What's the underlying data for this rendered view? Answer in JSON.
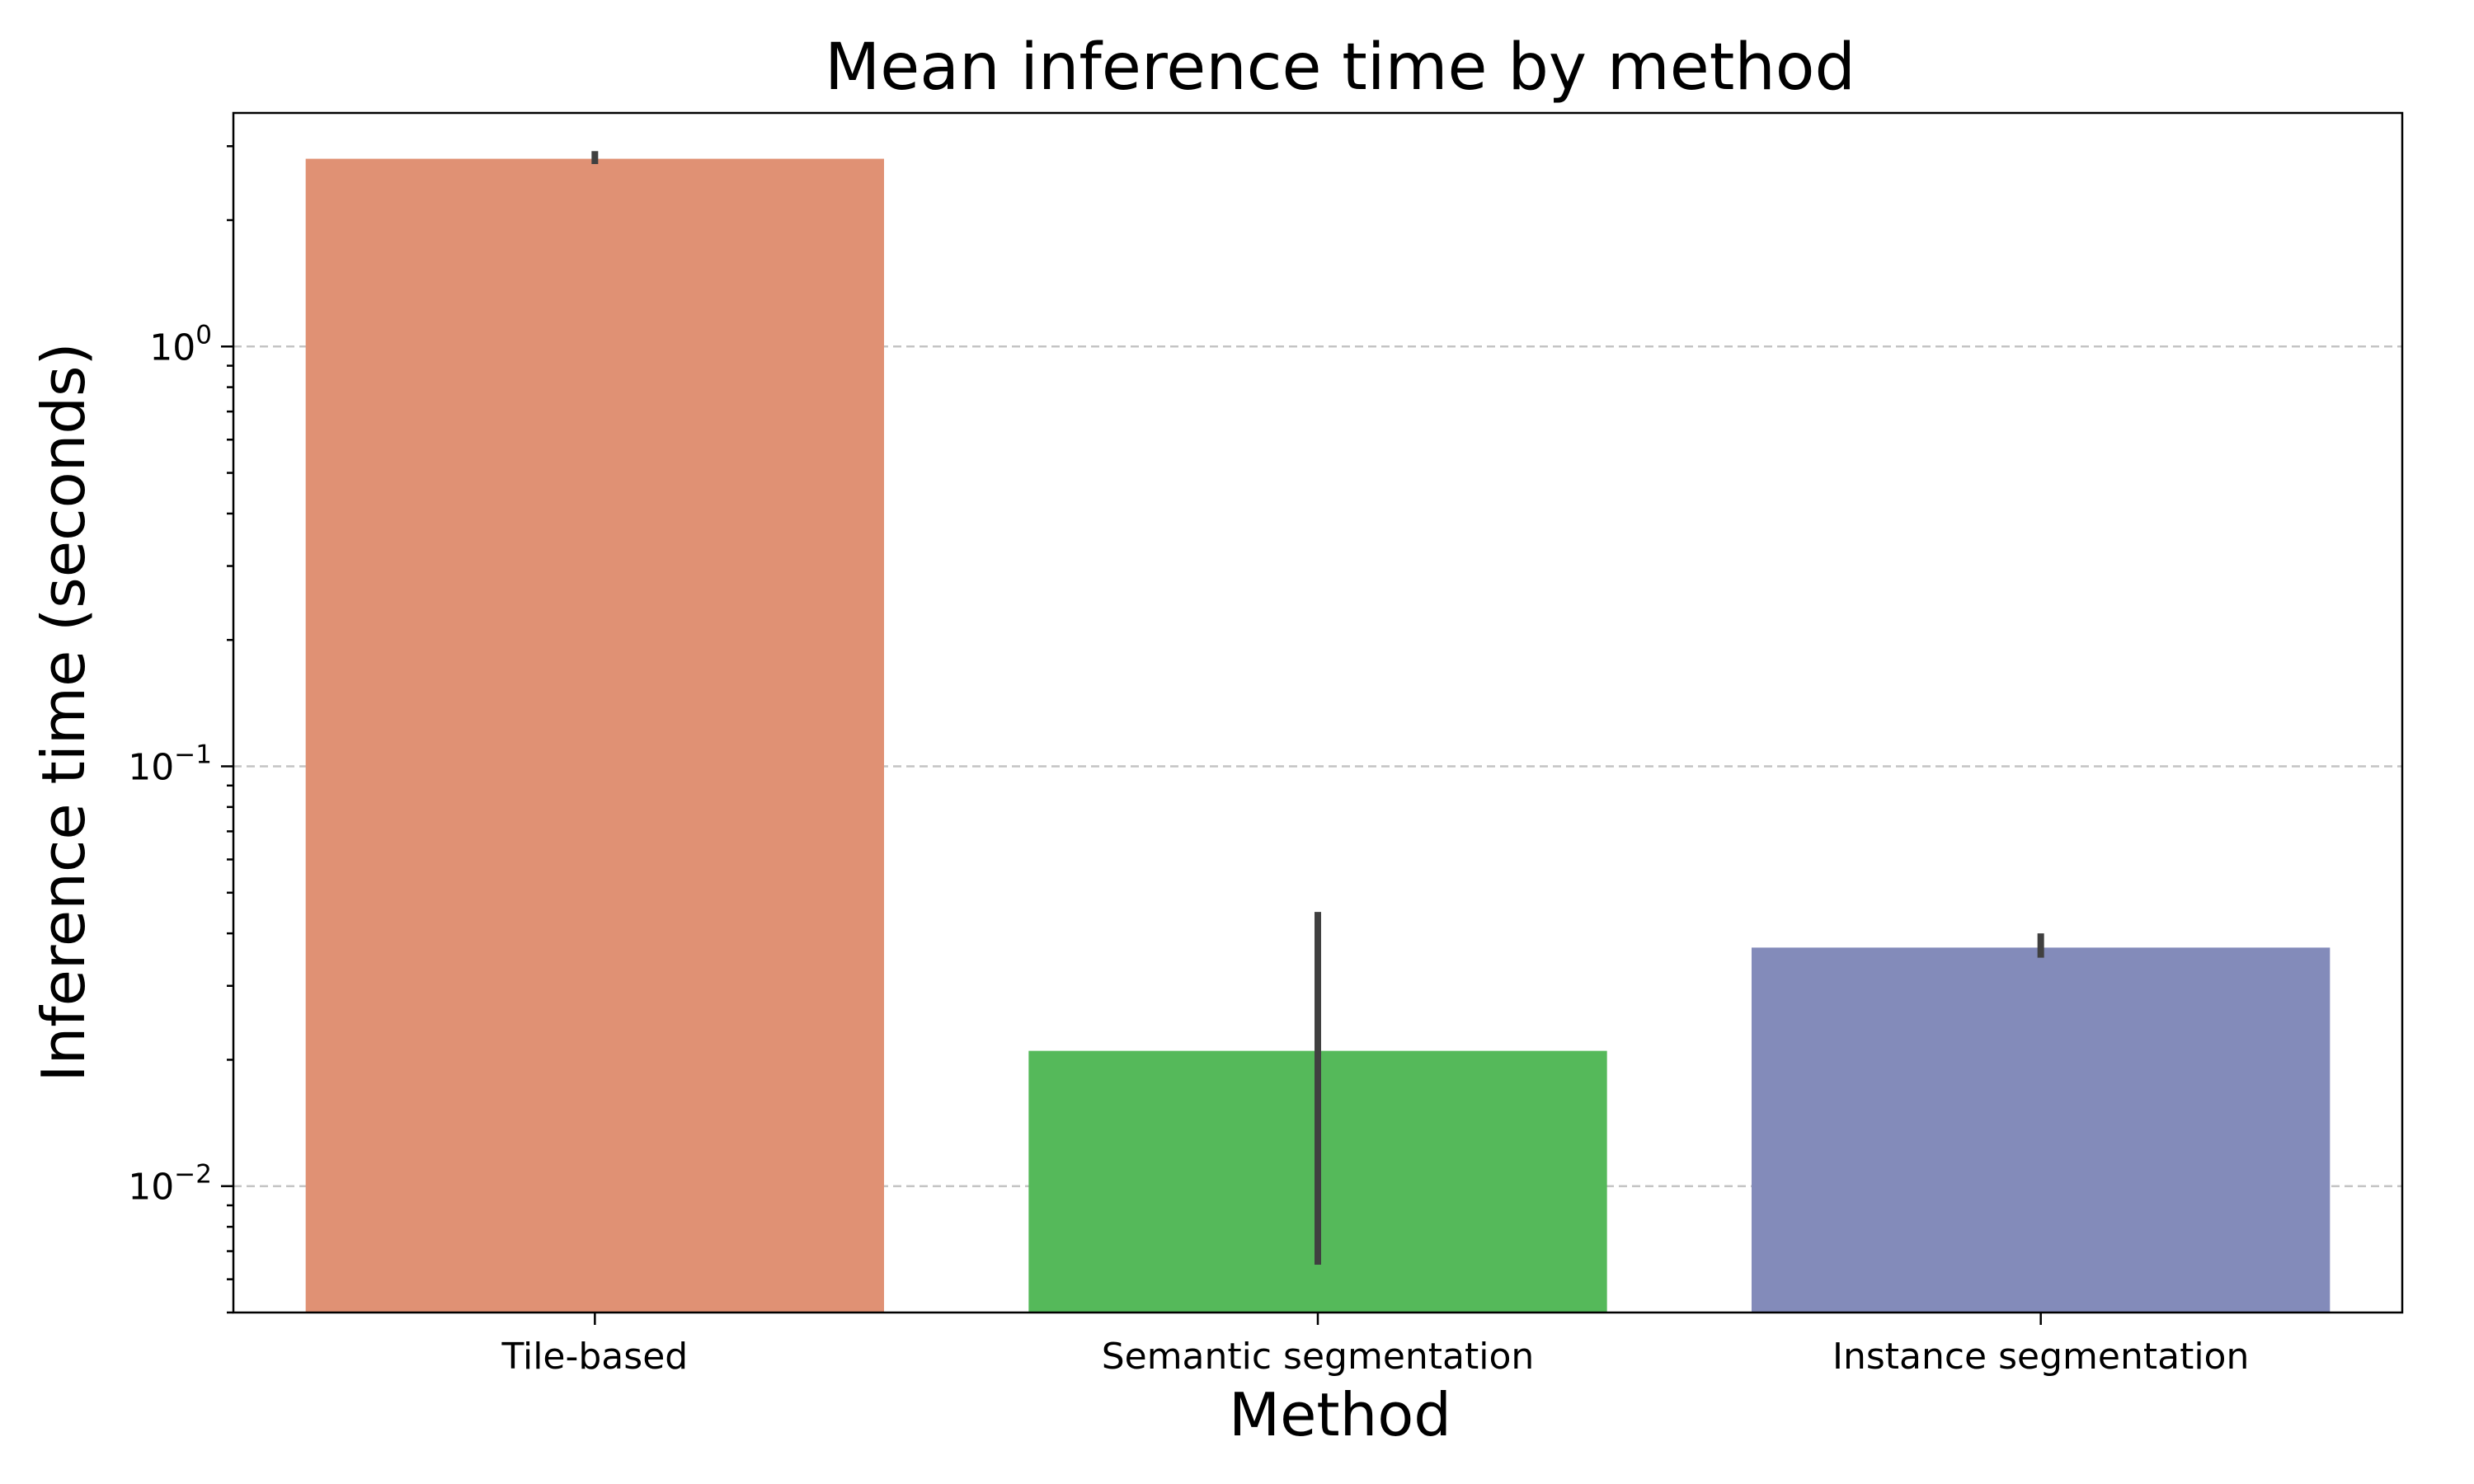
{
  "chart_data": {
    "type": "bar",
    "title": "Mean inference time by method",
    "xlabel": "Method",
    "ylabel": "Inference time (seconds)",
    "yscale": "log",
    "ylim": [
      0.005,
      3.6
    ],
    "yticks": [
      {
        "value": 0.01,
        "base": "10",
        "exp": "−2"
      },
      {
        "value": 0.1,
        "base": "10",
        "exp": "−1"
      },
      {
        "value": 1,
        "base": "10",
        "exp": "0"
      }
    ],
    "grid": "y, dashed",
    "categories": [
      "Tile-based",
      "Semantic segmentation",
      "Instance segmentation"
    ],
    "values": [
      2.8,
      0.021,
      0.037
    ],
    "error_low": [
      2.72,
      0.0065,
      0.035
    ],
    "error_high": [
      2.92,
      0.045,
      0.04
    ],
    "colors": [
      "#e09174",
      "#55b95a",
      "#838bba"
    ]
  }
}
